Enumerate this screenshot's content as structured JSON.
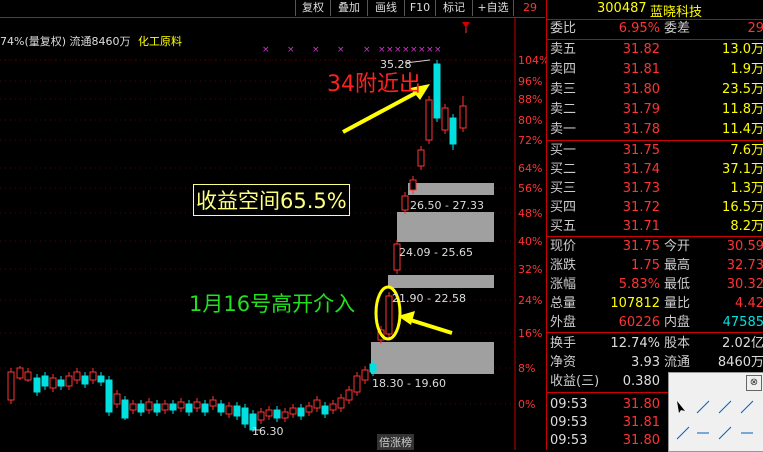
{
  "toolbar": {
    "buttons": [
      {
        "label": "复权"
      },
      {
        "label": "叠加"
      },
      {
        "label": "画线"
      },
      {
        "label": "F10"
      },
      {
        "label": "标记"
      },
      {
        "label": "+自选"
      },
      {
        "label": "29"
      }
    ]
  },
  "chart_header": {
    "text_a": "74%(量复权) 流通8460万",
    "text_b": "化工原料"
  },
  "price_axis": [
    "104%",
    "96%",
    "88%",
    "80%",
    "72%",
    "64%",
    "56%",
    "48%",
    "40%",
    "32%",
    "24%",
    "16%",
    "8%",
    "0%"
  ],
  "annotations": {
    "near_34": "34附近出",
    "gain_space": "收益空间65.5%",
    "jan16": "1月16号高开介入",
    "high_label": "35.28",
    "low_label": "16.30",
    "zone1": "26.50 - 27.33",
    "zone2": "24.09 - 25.65",
    "zone3": "21.90 - 22.58",
    "zone4": "18.30 - 19.60",
    "bottom_tag": "倍涨榜"
  },
  "quote": {
    "code": "300487",
    "name": "蓝晓科技",
    "webi_label": "委比",
    "webi_value": "6.95%",
    "wecha_label": "委差",
    "wecha_value": "29",
    "asks": [
      {
        "label": "卖五",
        "price": "31.82",
        "vol": "13.0万"
      },
      {
        "label": "卖四",
        "price": "31.81",
        "vol": "1.9万"
      },
      {
        "label": "卖三",
        "price": "31.80",
        "vol": "23.5万"
      },
      {
        "label": "卖二",
        "price": "31.79",
        "vol": "11.8万"
      },
      {
        "label": "卖一",
        "price": "31.78",
        "vol": "11.4万"
      }
    ],
    "bids": [
      {
        "label": "买一",
        "price": "31.75",
        "vol": "7.6万"
      },
      {
        "label": "买二",
        "price": "31.74",
        "vol": "37.1万"
      },
      {
        "label": "买三",
        "price": "31.73",
        "vol": "1.3万"
      },
      {
        "label": "买四",
        "price": "31.72",
        "vol": "16.5万"
      },
      {
        "label": "买五",
        "price": "31.71",
        "vol": "8.2万"
      }
    ],
    "stats": [
      {
        "l1": "现价",
        "v1": "31.75",
        "l2": "今开",
        "v2": "30.59"
      },
      {
        "l1": "涨跌",
        "v1": "1.75",
        "l2": "最高",
        "v2": "32.73"
      },
      {
        "l1": "涨幅",
        "v1": "5.83%",
        "l2": "最低",
        "v2": "30.32"
      },
      {
        "l1": "总量",
        "v1": "107812",
        "l2": "量比",
        "v2": "4.42"
      },
      {
        "l1": "外盘",
        "v1": "60226",
        "l2": "内盘",
        "v2": "47585"
      }
    ],
    "stats2": [
      {
        "l1": "换手",
        "v1": "12.74%",
        "l2": "股本",
        "v2": "2.02亿"
      },
      {
        "l1": "净资",
        "v1": "3.93",
        "l2": "流通",
        "v2": "8460万"
      },
      {
        "l1": "收益(三)",
        "v1": "0.380",
        "l2": "",
        "v2": ""
      }
    ],
    "ticks": [
      {
        "time": "09:53",
        "price": "31.80"
      },
      {
        "time": "09:53",
        "price": "31.81"
      },
      {
        "time": "09:53",
        "price": "31.80"
      }
    ]
  },
  "draw_tools": {
    "close": "⊗"
  },
  "colors": {
    "up": "#ff3333",
    "down": "#00e0e0",
    "ma": "#ffffff",
    "zone": "#a0a0a0"
  }
}
